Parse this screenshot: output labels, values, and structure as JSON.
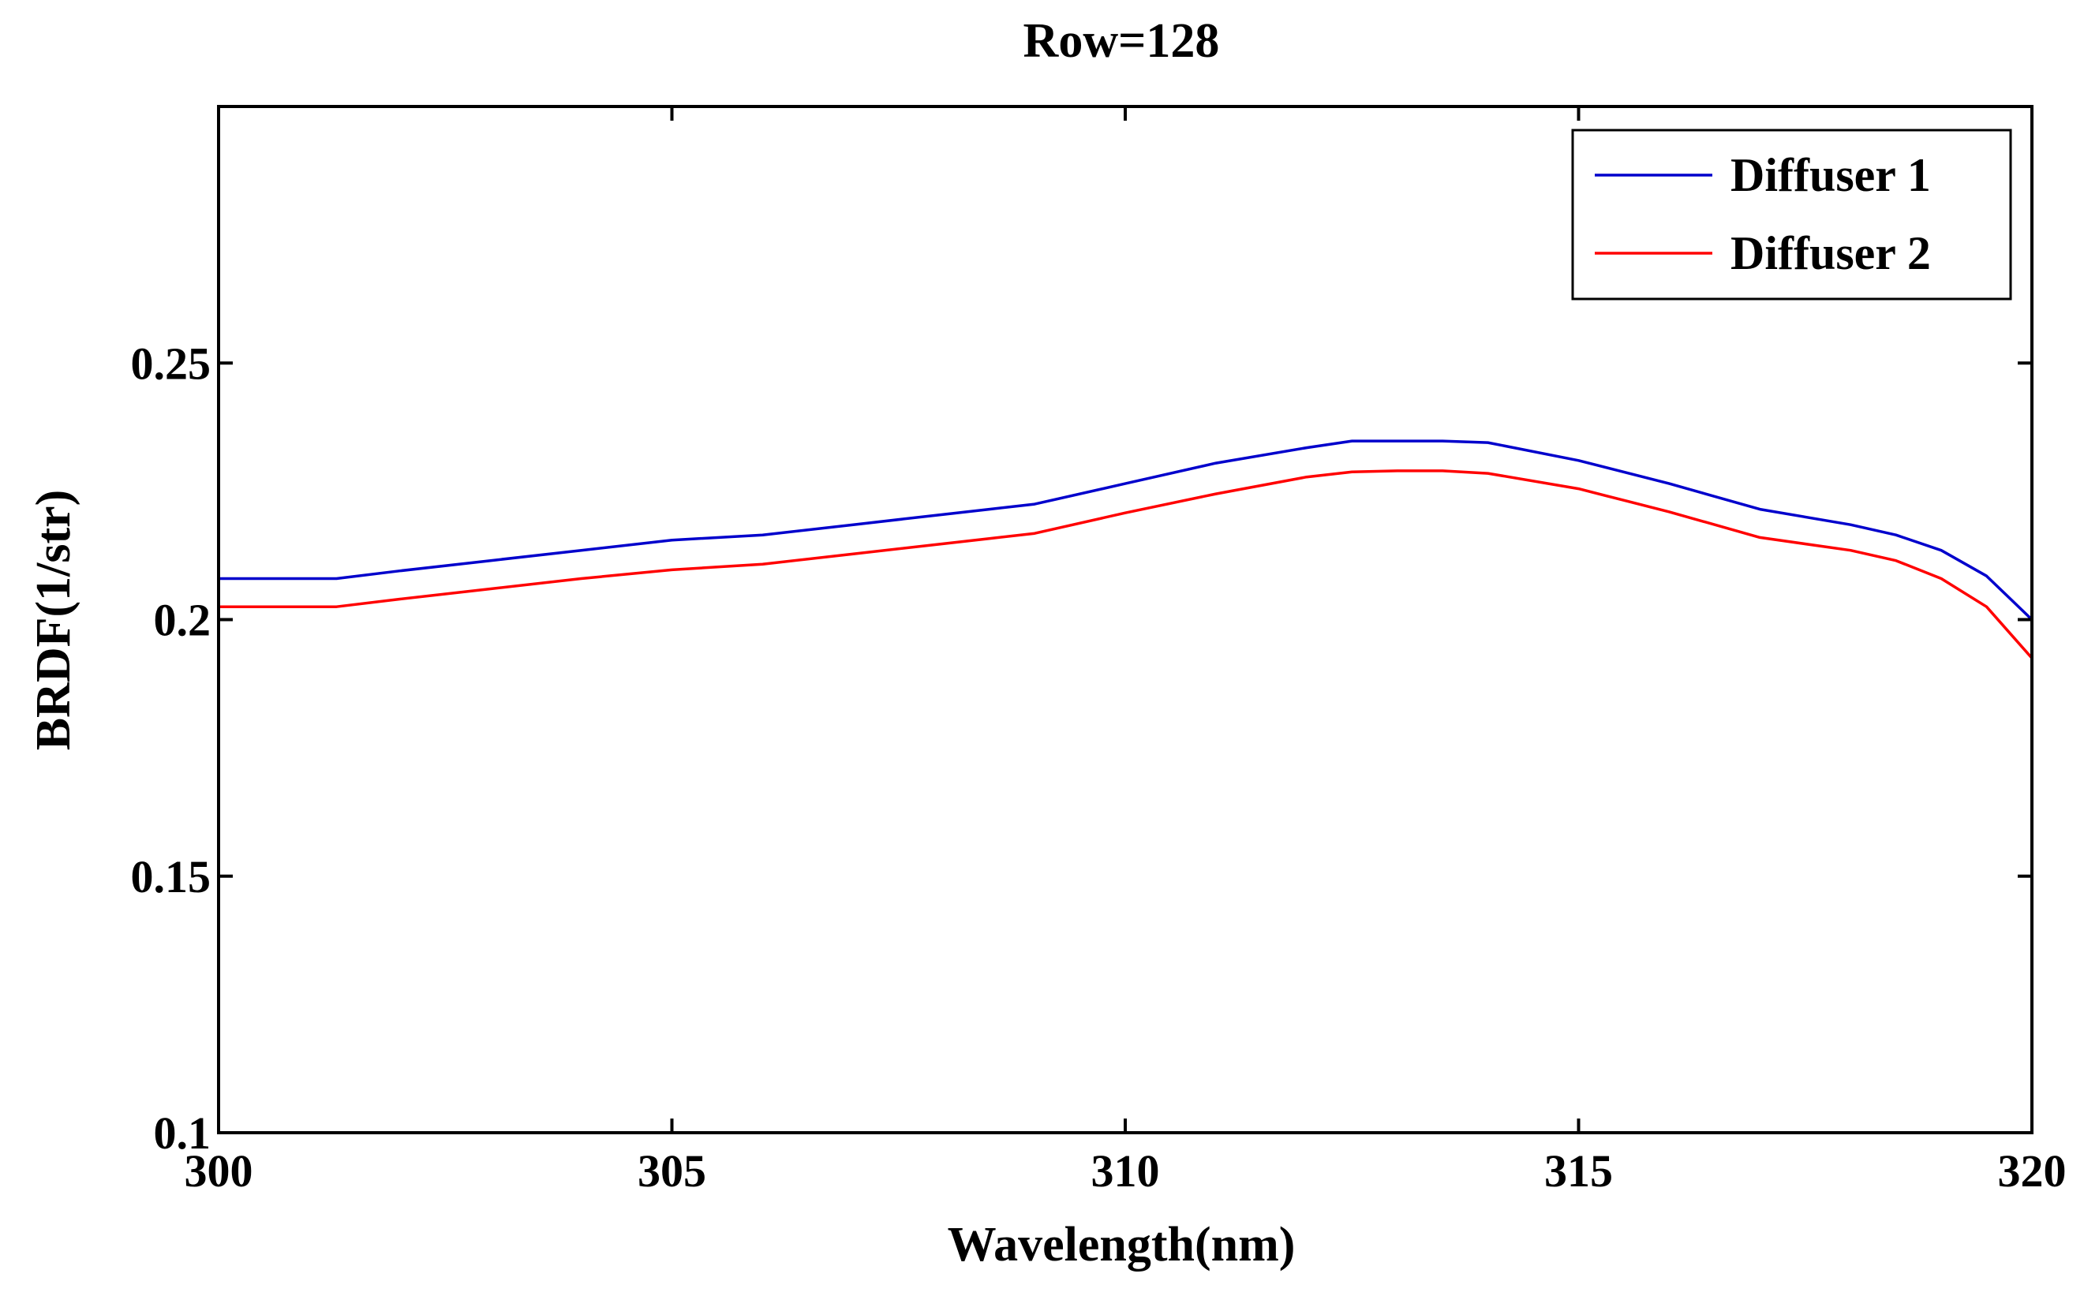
{
  "chart_data": {
    "type": "line",
    "title": "Row=128",
    "xlabel": "Wavelength(nm)",
    "ylabel": "BRDF(1/str)",
    "xlim": [
      300,
      320
    ],
    "ylim": [
      0.1,
      0.3
    ],
    "xticks": [
      300,
      305,
      310,
      315,
      320
    ],
    "xtick_labels": [
      "300",
      "305",
      "310",
      "315",
      "320"
    ],
    "yticks": [
      0.1,
      0.15,
      0.2,
      0.25
    ],
    "ytick_labels": [
      "0.1",
      "0.15",
      "0.2",
      "0.25"
    ],
    "grid": false,
    "legend_position": "top-right",
    "series": [
      {
        "name": "Diffuser 1",
        "color": "#0000cc",
        "x": [
          300,
          301,
          301.3,
          302,
          303,
          304,
          305,
          306,
          307,
          308,
          308.5,
          309,
          310,
          311,
          312,
          312.5,
          313,
          313.5,
          314,
          315,
          316,
          317,
          318,
          318.5,
          319,
          319.5,
          320
        ],
        "y": [
          0.208,
          0.208,
          0.208,
          0.2095,
          0.2115,
          0.2135,
          0.2155,
          0.2165,
          0.2185,
          0.2205,
          0.2215,
          0.2225,
          0.2265,
          0.2305,
          0.2335,
          0.2348,
          0.2348,
          0.2348,
          0.2345,
          0.231,
          0.2265,
          0.2215,
          0.2185,
          0.2165,
          0.2135,
          0.2085,
          0.2
        ]
      },
      {
        "name": "Diffuser 2",
        "color": "#ff0000",
        "x": [
          300,
          301,
          301.3,
          302,
          303,
          304,
          305,
          306,
          307,
          308,
          308.5,
          309,
          310,
          311,
          312,
          312.5,
          313,
          313.5,
          314,
          315,
          316,
          317,
          318,
          318.5,
          319,
          319.5,
          320
        ],
        "y": [
          0.2025,
          0.2025,
          0.2025,
          0.204,
          0.206,
          0.208,
          0.2097,
          0.2108,
          0.2128,
          0.2148,
          0.2158,
          0.2168,
          0.2208,
          0.2245,
          0.2278,
          0.2288,
          0.229,
          0.229,
          0.2285,
          0.2255,
          0.221,
          0.216,
          0.2135,
          0.2115,
          0.208,
          0.2025,
          0.1925
        ]
      }
    ]
  }
}
